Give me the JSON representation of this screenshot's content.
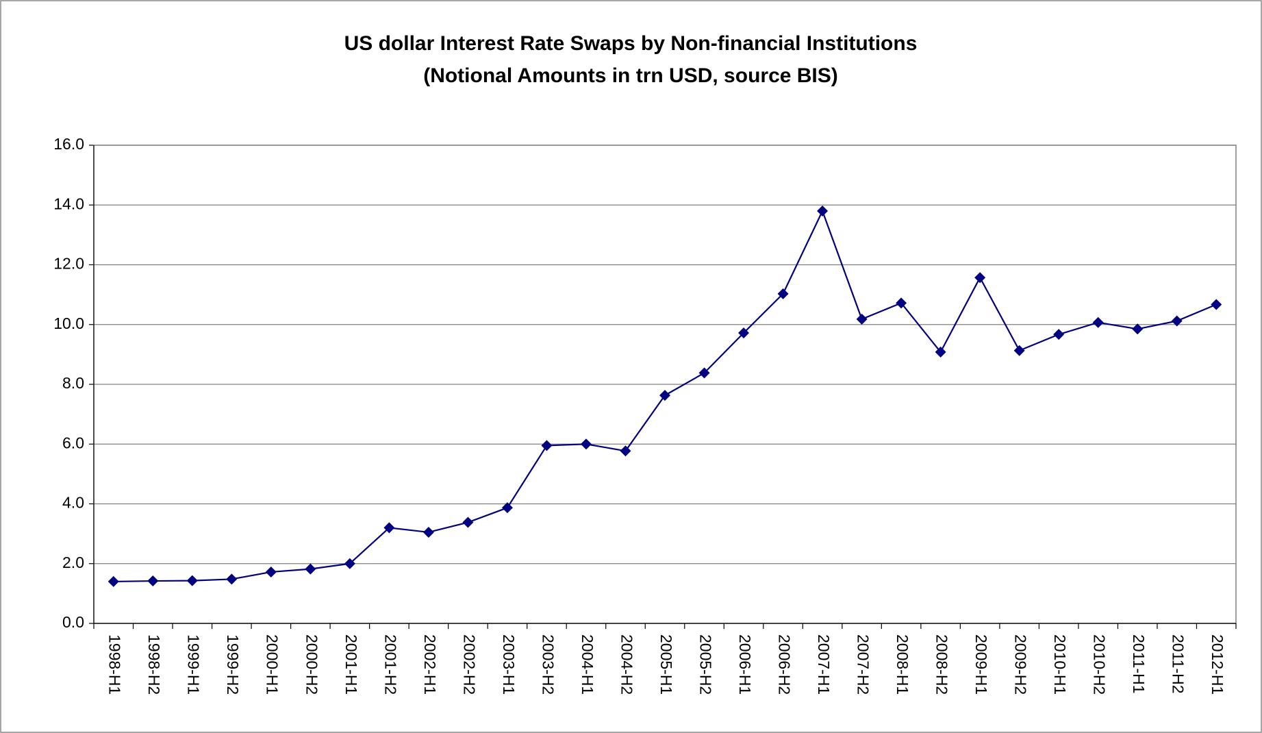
{
  "chart_data": {
    "type": "line",
    "title": "US dollar Interest Rate Swaps by Non-financial Institutions",
    "subtitle": "(Notional Amounts in trn USD, source BIS)",
    "categories": [
      "1998-H1",
      "1998-H2",
      "1999-H1",
      "1999-H2",
      "2000-H1",
      "2000-H2",
      "2001-H1",
      "2001-H2",
      "2002-H1",
      "2002-H2",
      "2003-H1",
      "2003-H2",
      "2004-H1",
      "2004-H2",
      "2005-H1",
      "2005-H2",
      "2006-H1",
      "2006-H2",
      "2007-H1",
      "2007-H2",
      "2008-H1",
      "2008-H2",
      "2009-H1",
      "2009-H2",
      "2010-H1",
      "2010-H2",
      "2011-H1",
      "2011-H2",
      "2012-H1"
    ],
    "values": [
      1.4,
      1.42,
      1.43,
      1.48,
      1.72,
      1.82,
      2.0,
      3.2,
      3.05,
      3.38,
      3.87,
      5.95,
      6.0,
      5.77,
      7.63,
      8.38,
      9.72,
      11.03,
      13.8,
      10.18,
      10.72,
      9.08,
      11.57,
      9.13,
      9.67,
      10.07,
      9.85,
      10.12,
      10.67
    ],
    "color": "#000080",
    "ylim": [
      0,
      16
    ],
    "yticks": [
      {
        "value": 0,
        "label": "0.0"
      },
      {
        "value": 2,
        "label": "2.0"
      },
      {
        "value": 4,
        "label": "4.0"
      },
      {
        "value": 6,
        "label": "6.0"
      },
      {
        "value": 8,
        "label": "8.0"
      },
      {
        "value": 10,
        "label": "10.0"
      },
      {
        "value": 12,
        "label": "12.0"
      },
      {
        "value": 14,
        "label": "14.0"
      },
      {
        "value": 16,
        "label": "16.0"
      }
    ],
    "grid": true
  }
}
